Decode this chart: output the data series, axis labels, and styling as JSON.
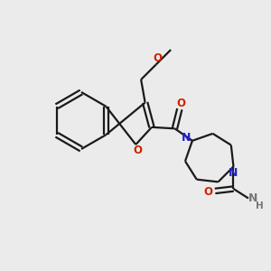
{
  "bg_color": "#EBEBEB",
  "bond_color": "#1a1a1a",
  "N_color": "#2222CC",
  "O_color": "#CC2200",
  "NH_color": "#777777",
  "lw": 1.6,
  "figsize": [
    3.0,
    3.0
  ],
  "dpi": 100,
  "xlim": [
    0,
    10
  ],
  "ylim": [
    0,
    10
  ]
}
